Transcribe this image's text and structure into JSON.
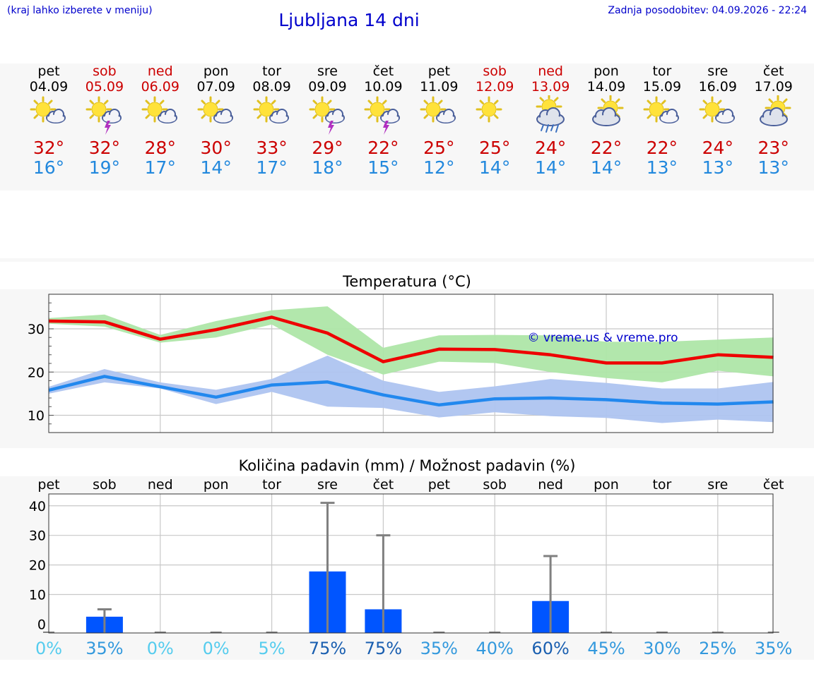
{
  "header": {
    "hint": "(kraj lahko izberete v meniju)",
    "title": "Ljubljana 14 dni",
    "updated": "Zadnja posodobitev: 04.09.2026 - 22:24"
  },
  "days": [
    {
      "name": "pet",
      "date": "04.09",
      "weekend": false,
      "icon": "sun-cloud-icon",
      "tmax": "32°",
      "tmin": "16°"
    },
    {
      "name": "sob",
      "date": "05.09",
      "weekend": true,
      "icon": "sun-cloud-storm-icon",
      "tmax": "32°",
      "tmin": "19°"
    },
    {
      "name": "ned",
      "date": "06.09",
      "weekend": true,
      "icon": "sun-cloud-icon",
      "tmax": "28°",
      "tmin": "17°"
    },
    {
      "name": "pon",
      "date": "07.09",
      "weekend": false,
      "icon": "sun-cloud-icon",
      "tmax": "30°",
      "tmin": "14°"
    },
    {
      "name": "tor",
      "date": "08.09",
      "weekend": false,
      "icon": "sun-cloud-icon",
      "tmax": "33°",
      "tmin": "17°"
    },
    {
      "name": "sre",
      "date": "09.09",
      "weekend": false,
      "icon": "sun-cloud-storm-icon",
      "tmax": "29°",
      "tmin": "18°"
    },
    {
      "name": "čet",
      "date": "10.09",
      "weekend": false,
      "icon": "sun-cloud-storm-icon",
      "tmax": "22°",
      "tmin": "15°"
    },
    {
      "name": "pet",
      "date": "11.09",
      "weekend": false,
      "icon": "sun-cloud-icon",
      "tmax": "25°",
      "tmin": "12°"
    },
    {
      "name": "sob",
      "date": "12.09",
      "weekend": true,
      "icon": "sun-icon",
      "tmax": "25°",
      "tmin": "14°"
    },
    {
      "name": "ned",
      "date": "13.09",
      "weekend": true,
      "icon": "sun-cloud-rain-icon",
      "tmax": "24°",
      "tmin": "14°"
    },
    {
      "name": "pon",
      "date": "14.09",
      "weekend": false,
      "icon": "cloud-sun-icon",
      "tmax": "22°",
      "tmin": "14°"
    },
    {
      "name": "tor",
      "date": "15.09",
      "weekend": false,
      "icon": "sun-cloud-icon",
      "tmax": "22°",
      "tmin": "13°"
    },
    {
      "name": "sre",
      "date": "16.09",
      "weekend": false,
      "icon": "sun-cloud-icon",
      "tmax": "24°",
      "tmin": "13°"
    },
    {
      "name": "čet",
      "date": "17.09",
      "weekend": false,
      "icon": "cloud-sun-icon",
      "tmax": "23°",
      "tmin": "13°"
    }
  ],
  "colors": {
    "title": "#0000cc",
    "weekend": "#cc0000",
    "tmax": "#cc0000",
    "tmin": "#2288dd",
    "max_line": "#ee0000",
    "max_band": "#aee6a8",
    "min_line": "#2288ee",
    "min_band": "#aec4f0",
    "bar": "#0055ff",
    "whisker": "#808080"
  },
  "chart_data": [
    {
      "type": "line",
      "title": "Temperatura (°C)",
      "watermark": "© vreme.us & vreme.pro",
      "ylim": [
        6,
        38
      ],
      "yticks": [
        10,
        20,
        30
      ],
      "grid": true,
      "series": [
        {
          "values": [
            31.8,
            31.6,
            27.6,
            29.8,
            32.7,
            29.0,
            22.4,
            25.3,
            25.2,
            24.0,
            22.1,
            22.1,
            24.0,
            23.4
          ]
        },
        {
          "values": [
            15.8,
            19.0,
            16.6,
            14.2,
            17.0,
            17.7,
            14.7,
            12.4,
            13.8,
            14.0,
            13.6,
            12.8,
            12.6,
            13.1
          ]
        }
      ],
      "bands": [
        {
          "low": [
            31.2,
            30.5,
            26.8,
            28.0,
            31.0,
            24.0,
            19.4,
            22.4,
            22.1,
            20.0,
            18.6,
            17.6,
            20.3,
            19.0
          ],
          "high": [
            32.5,
            33.3,
            28.6,
            31.8,
            34.3,
            35.2,
            25.6,
            28.5,
            28.6,
            28.5,
            27.0,
            27.0,
            27.5,
            28.0
          ]
        },
        {
          "low": [
            15.0,
            17.6,
            16.2,
            12.6,
            15.4,
            12.0,
            11.7,
            9.5,
            10.7,
            9.8,
            9.4,
            8.2,
            9.0,
            8.4
          ],
          "high": [
            16.6,
            20.7,
            17.6,
            15.9,
            18.4,
            23.8,
            18.0,
            15.4,
            16.7,
            18.4,
            17.5,
            16.2,
            16.2,
            17.7
          ]
        }
      ]
    },
    {
      "type": "bar",
      "title": "Količina padavin (mm) / Možnost padavin (%)",
      "categories": [
        "pet",
        "sob",
        "ned",
        "pon",
        "tor",
        "sre",
        "čet",
        "pet",
        "sob",
        "ned",
        "pon",
        "tor",
        "sre",
        "čet"
      ],
      "ylim": [
        -3,
        44
      ],
      "yticks": [
        0,
        10,
        20,
        30,
        40
      ],
      "grid": true,
      "values": [
        0,
        2.5,
        0,
        0,
        0,
        17.8,
        5,
        0,
        0,
        7.8,
        0,
        0,
        0,
        0
      ],
      "whisker_max": [
        0,
        5,
        0,
        0,
        0,
        41,
        30,
        0,
        0,
        23,
        0,
        0,
        0,
        0
      ],
      "probability": [
        "0%",
        "35%",
        "0%",
        "0%",
        "5%",
        "75%",
        "75%",
        "35%",
        "40%",
        "60%",
        "45%",
        "30%",
        "25%",
        "35%"
      ],
      "probability_colors": [
        "#55ccee",
        "#3399dd",
        "#55ccee",
        "#55ccee",
        "#55ccee",
        "#1a5fb0",
        "#1a5fb0",
        "#3399dd",
        "#3399dd",
        "#1a5fb0",
        "#3399dd",
        "#3399dd",
        "#3399dd",
        "#3399dd"
      ]
    }
  ]
}
